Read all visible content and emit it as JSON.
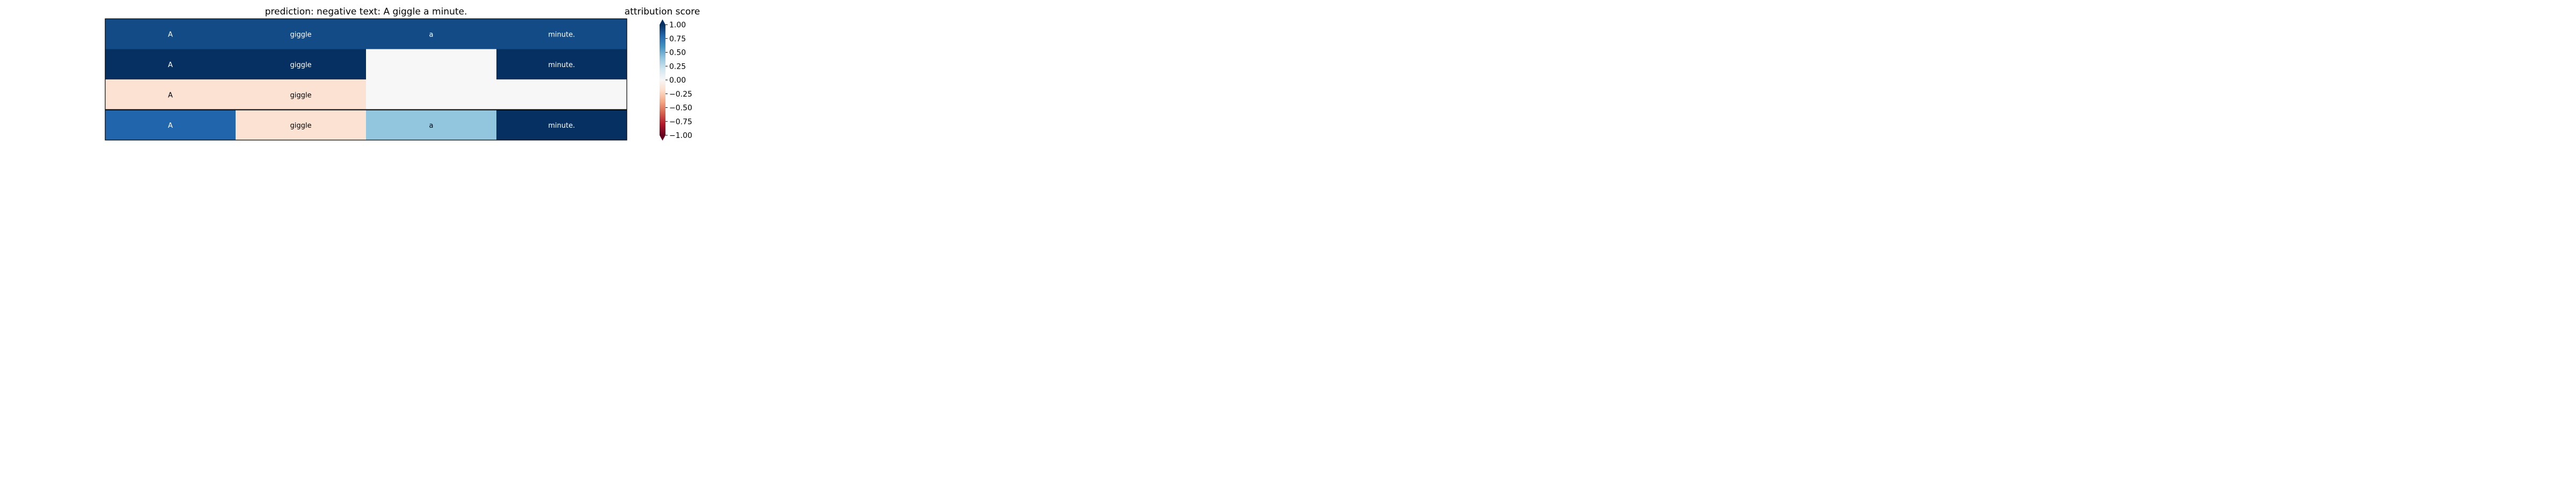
{
  "chart_data": {
    "type": "heatmap",
    "title": "prediction:  negative     text:  A giggle a minute.",
    "colorbar": {
      "title": "attribution score",
      "range": [
        -1.0,
        1.0
      ],
      "colormap": "RdBu",
      "extend": "both",
      "ticks": [
        1.0,
        0.75,
        0.5,
        0.25,
        0.0,
        -0.25,
        -0.5,
        -0.75,
        -1.0
      ],
      "tick_labels": [
        "1.00",
        "0.75",
        "0.50",
        "0.25",
        "0.00",
        "−0.25",
        "−0.50",
        "−0.75",
        "−1.00"
      ]
    },
    "columns": 4,
    "rows": [
      {
        "cells": [
          {
            "token": "A",
            "value": 0.9
          },
          {
            "token": "giggle",
            "value": 0.9
          },
          {
            "token": "a",
            "value": 0.9
          },
          {
            "token": "minute.",
            "value": 0.9
          }
        ]
      },
      {
        "cells": [
          {
            "token": "A",
            "value": 1.0
          },
          {
            "token": "giggle",
            "value": 1.0
          },
          {
            "token": "",
            "value": 0.0
          },
          {
            "token": "minute.",
            "value": 1.0
          }
        ]
      },
      {
        "cells": [
          {
            "token": "A",
            "value": -0.15
          },
          {
            "token": "giggle",
            "value": -0.15
          },
          {
            "token": "",
            "value": 0.0
          },
          {
            "token": "",
            "value": 0.0
          }
        ]
      },
      {
        "cells": [
          {
            "token": "A",
            "value": 0.8
          },
          {
            "token": "giggle",
            "value": -0.15
          },
          {
            "token": "a",
            "value": 0.4
          },
          {
            "token": "minute.",
            "value": 1.0
          }
        ]
      }
    ]
  }
}
